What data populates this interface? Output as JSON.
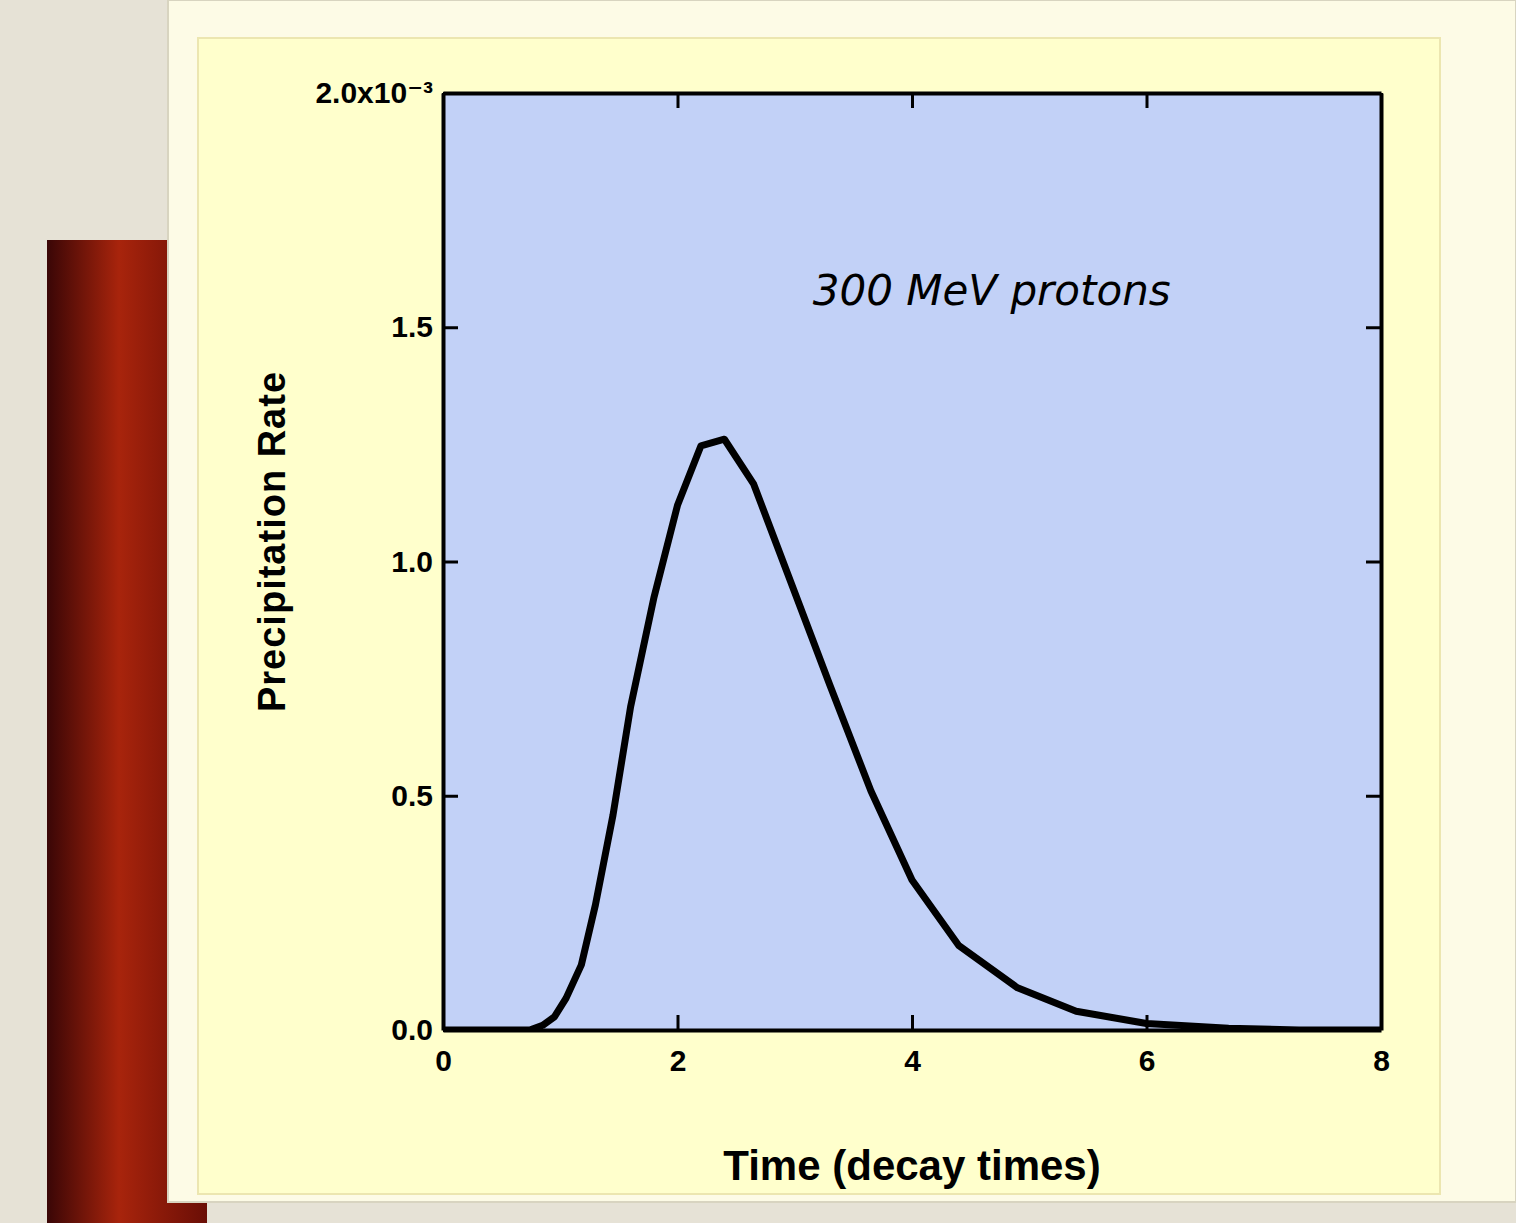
{
  "chart_data": {
    "type": "line",
    "annotations": [
      "300 MeV protons"
    ],
    "x_label": "Time (decay times)",
    "y_label": "Precipitation Rate",
    "x": [
      0,
      0.74,
      0.85,
      0.95,
      1.05,
      1.18,
      1.3,
      1.45,
      1.6,
      1.8,
      2.0,
      2.2,
      2.4,
      2.65,
      2.95,
      3.3,
      3.65,
      4.0,
      4.4,
      4.9,
      5.4,
      6.0,
      6.7,
      7.3,
      8.0
    ],
    "values": [
      0,
      0,
      0.01,
      0.028,
      0.068,
      0.139,
      0.267,
      0.459,
      0.69,
      0.924,
      1.12,
      1.247,
      1.261,
      1.165,
      0.967,
      0.736,
      0.51,
      0.32,
      0.18,
      0.09,
      0.04,
      0.014,
      0.004,
      0,
      0
    ],
    "color": "#000000",
    "xlim": [
      0,
      8
    ],
    "xticks": [
      0,
      2,
      4,
      6,
      8
    ],
    "ylim": [
      0,
      2
    ],
    "yticks": [
      {
        "value": 0,
        "label": "0.0"
      },
      0.5,
      {
        "value": 1,
        "label": "1.0"
      },
      1.5,
      {
        "value": 2,
        "label": "2.0x10⁻³"
      }
    ],
    "grid": false
  }
}
